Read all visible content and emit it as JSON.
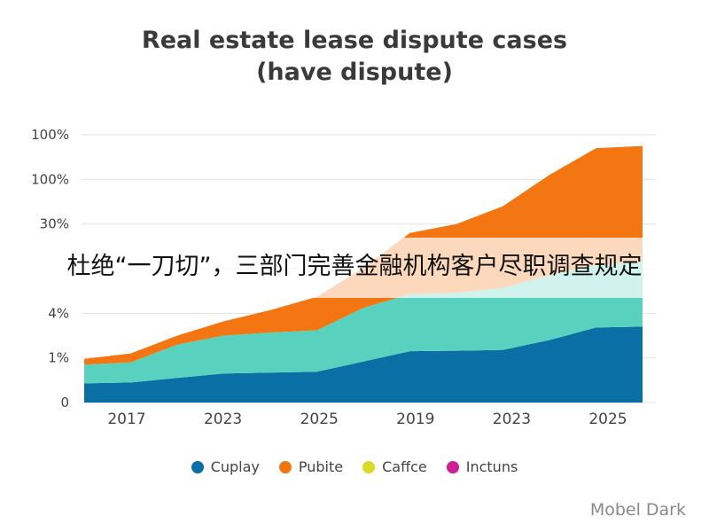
{
  "chart_data": {
    "type": "area",
    "title": "Real estate lease dispute cases",
    "subtitle": "(have dispute)",
    "y_tick_labels": [
      "100%",
      "100%",
      "30%",
      "",
      "4%",
      "1%",
      "0"
    ],
    "x_tick_labels": [
      "2017",
      "2023",
      "2025",
      "2019",
      "2023",
      "2025"
    ],
    "x": [
      0,
      1,
      2,
      3,
      4,
      5,
      6,
      7,
      8,
      9,
      10,
      11,
      12
    ],
    "stacked": true,
    "ylim": [
      0,
      6
    ],
    "series": [
      {
        "name": "Cuplay",
        "color": "#0a6fa4",
        "values": [
          0.43,
          0.45,
          0.55,
          0.65,
          0.67,
          0.69,
          0.92,
          1.15,
          1.16,
          1.18,
          1.4,
          1.68,
          1.7
        ]
      },
      {
        "name": "",
        "color": "#58d2bf",
        "values": [
          0.42,
          0.45,
          0.75,
          0.85,
          0.9,
          0.93,
          1.2,
          1.28,
          1.3,
          1.39,
          1.45,
          1.4,
          1.45
        ]
      },
      {
        "name": "Pubite",
        "color": "#f47612",
        "values": [
          0.13,
          0.2,
          0.2,
          0.32,
          0.5,
          0.75,
          0.9,
          1.37,
          1.54,
          1.83,
          2.25,
          2.62,
          2.6
        ]
      }
    ],
    "legend": [
      {
        "name": "Cuplay",
        "color": "#0a6fa4"
      },
      {
        "name": "Pubite",
        "color": "#f47612"
      },
      {
        "name": "Caffce",
        "color": "#d7dc28"
      },
      {
        "name": "Inctuns",
        "color": "#d11f91"
      }
    ],
    "legend_position": "bottom",
    "grid": true
  },
  "overlay_text": "杜绝“一刀切”，三部门完善金融机构客户尽职调查规定",
  "watermark": "Mobel Dark"
}
